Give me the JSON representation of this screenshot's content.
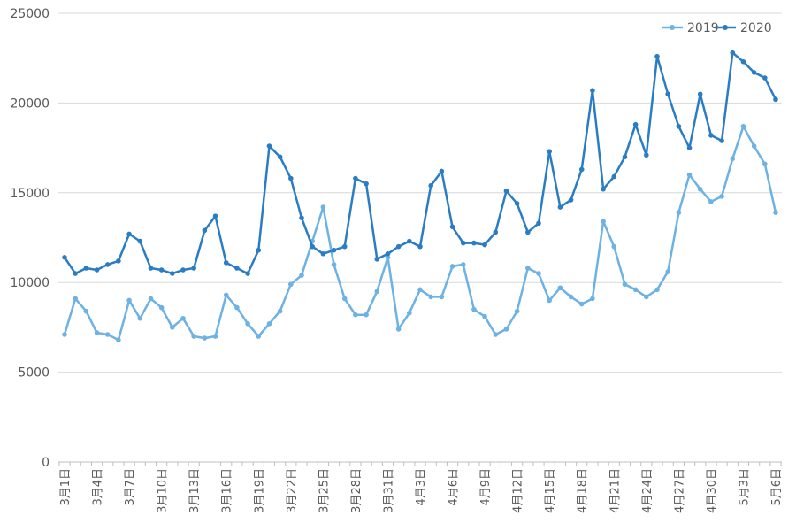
{
  "chart_data": {
    "type": "line",
    "title": "",
    "xlabel": "",
    "ylabel": "",
    "ylim": [
      0,
      25000
    ],
    "y_ticks": [
      0,
      5000,
      10000,
      15000,
      20000,
      25000
    ],
    "grid": "horizontal",
    "legend_position": "top-right",
    "categories": [
      "3月1日",
      "3月2日",
      "3月3日",
      "3月4日",
      "3月5日",
      "3月6日",
      "3月7日",
      "3月8日",
      "3月9日",
      "3月10日",
      "3月11日",
      "3月12日",
      "3月13日",
      "3月14日",
      "3月15日",
      "3月16日",
      "3月17日",
      "3月18日",
      "3月19日",
      "3月20日",
      "3月21日",
      "3月22日",
      "3月23日",
      "3月24日",
      "3月25日",
      "3月26日",
      "3月27日",
      "3月28日",
      "3月29日",
      "3月30日",
      "3月31日",
      "4月1日",
      "4月2日",
      "4月3日",
      "4月4日",
      "4月5日",
      "4月6日",
      "4月7日",
      "4月8日",
      "4月9日",
      "4月10日",
      "4月11日",
      "4月12日",
      "4月13日",
      "4月14日",
      "4月15日",
      "4月16日",
      "4月17日",
      "4月18日",
      "4月19日",
      "4月20日",
      "4月21日",
      "4月22日",
      "4月23日",
      "4月24日",
      "4月25日",
      "4月26日",
      "4月27日",
      "4月28日",
      "4月29日",
      "4月30日",
      "5月1日",
      "5月2日",
      "5月3日",
      "5月4日",
      "5月5日",
      "5月6日"
    ],
    "tick_labels": [
      "3月1日",
      "3月4日",
      "3月7日",
      "3月10日",
      "3月13日",
      "3月16日",
      "3月19日",
      "3月22日",
      "3月25日",
      "3月28日",
      "3月31日",
      "4月3日",
      "4月6日",
      "4月9日",
      "4月12日",
      "4月15日",
      "4月18日",
      "4月21日",
      "4月24日",
      "4月27日",
      "4月30日",
      "5月3日",
      "5月6日"
    ],
    "series": [
      {
        "name": "2019",
        "color": "#6cb2e4",
        "values": [
          7100,
          9100,
          8400,
          7200,
          7100,
          6800,
          9000,
          8000,
          9100,
          8600,
          7500,
          8000,
          7000,
          6900,
          7000,
          9300,
          8600,
          7700,
          7000,
          7700,
          8400,
          9900,
          10400,
          12300,
          14200,
          11000,
          9100,
          8200,
          8200,
          9500,
          11400,
          7400,
          8300,
          9600,
          9200,
          9200,
          10900,
          11000,
          8500,
          8100,
          7100,
          7400,
          8400,
          10800,
          10500,
          9000,
          9700,
          9200,
          8800,
          9100,
          13400,
          12000,
          9900,
          9600,
          9200,
          9600,
          10600,
          13900,
          16000,
          15200,
          14500,
          14800,
          16900,
          18700,
          17600,
          16600,
          13900
        ]
      },
      {
        "name": "2020",
        "color": "#2a7dc4",
        "values": [
          11400,
          10500,
          10800,
          10700,
          11000,
          11200,
          12700,
          12300,
          10800,
          10700,
          10500,
          10700,
          10800,
          12900,
          13700,
          11100,
          10800,
          10500,
          11800,
          17600,
          17000,
          15800,
          13600,
          12000,
          11600,
          11800,
          12000,
          15800,
          15500,
          11300,
          11600,
          12000,
          12300,
          12000,
          15400,
          16200,
          13100,
          12200,
          12200,
          12100,
          12800,
          15100,
          14400,
          12800,
          13300,
          17300,
          14200,
          14600,
          16300,
          20700,
          15200,
          15900,
          17000,
          18800,
          17100,
          22600,
          20500,
          18700,
          17500,
          20500,
          18200,
          17900,
          22800,
          22300,
          21700,
          21400,
          20200
        ]
      }
    ]
  }
}
